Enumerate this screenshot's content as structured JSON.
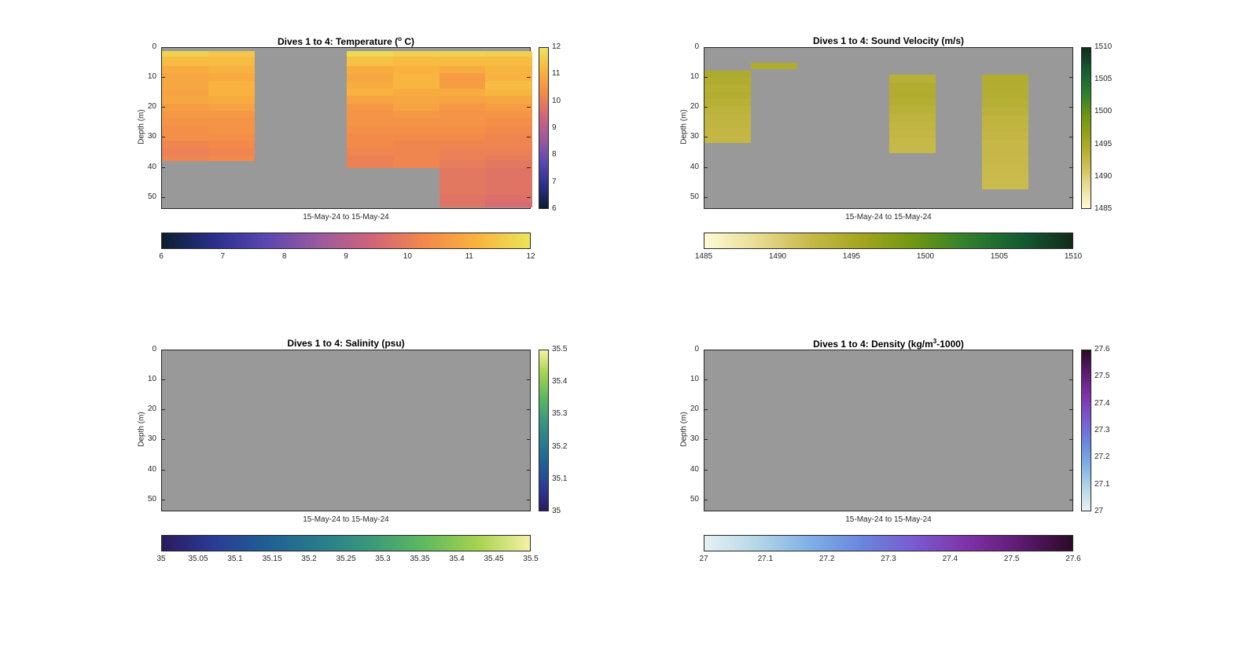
{
  "figure": {
    "background": "#ffffff",
    "nan_color": "#999999"
  },
  "chart_data": [
    {
      "type": "heatmap",
      "title": "Dives 1 to 4: Temperature (",
      "title_sup": "o",
      "title_tail": " C)",
      "ylabel": "Depth (m)",
      "xlabel": "15-May-24 to 15-May-24",
      "ylim": [
        0,
        54
      ],
      "y_reversed": true,
      "yticks": [
        "0",
        "10",
        "20",
        "30",
        "40",
        "50"
      ],
      "clim": [
        6,
        12
      ],
      "colormap": [
        "#0b1f2e",
        "#2a2f8c",
        "#5b47b0",
        "#9b5a9e",
        "#d0647a",
        "#f3894a",
        "#f9b33e",
        "#eae55a"
      ],
      "vbar_ticks": [
        "6",
        "7",
        "8",
        "9",
        "10",
        "11",
        "12"
      ],
      "hbar_ticks": [
        "6",
        "7",
        "8",
        "9",
        "10",
        "11",
        "12"
      ],
      "columns": [
        {
          "values": [
            11.7,
            11.3,
            11.0,
            10.9,
            10.9,
            10.8,
            10.9,
            10.7,
            10.6,
            10.5,
            10.4,
            10.4,
            10.2,
            10.1,
            10.2
          ]
        },
        {
          "values": [
            11.5,
            11.3,
            11.1,
            11.0,
            11.1,
            11.1,
            11.0,
            10.8,
            10.6,
            10.5,
            10.5,
            10.4,
            10.3,
            10.2,
            10.3
          ]
        },
        {
          "values": []
        },
        {
          "values": []
        },
        {
          "values": [
            11.8,
            11.4,
            11.0,
            10.9,
            11.0,
            11.1,
            10.8,
            10.6,
            10.5,
            10.5,
            10.4,
            10.3,
            10.3,
            10.2,
            10.1,
            10.1
          ]
        },
        {
          "values": [
            11.6,
            11.3,
            11.1,
            11.2,
            11.2,
            11.0,
            10.9,
            10.8,
            10.6,
            10.5,
            10.4,
            10.3,
            10.2,
            10.2,
            10.2,
            10.2
          ]
        },
        {
          "values": [
            11.7,
            11.3,
            11.0,
            10.7,
            10.7,
            11.0,
            10.8,
            10.6,
            10.5,
            10.5,
            10.4,
            10.3,
            10.2,
            10.1,
            10.1,
            10.0,
            9.9,
            9.9,
            9.9,
            9.8,
            9.8
          ]
        },
        {
          "values": [
            11.6,
            11.3,
            11.2,
            11.1,
            11.3,
            11.2,
            10.9,
            10.7,
            10.5,
            10.4,
            10.3,
            10.2,
            10.2,
            10.1,
            10.0,
            9.9,
            9.8,
            9.8,
            9.8,
            9.7,
            9.6
          ]
        }
      ],
      "row_depths": [
        [
          1,
          3
        ],
        [
          3,
          6
        ],
        [
          6,
          8.5
        ],
        [
          8.5,
          11
        ],
        [
          11,
          13.5
        ],
        [
          13.5,
          16
        ],
        [
          16,
          18.5
        ],
        [
          18.5,
          21
        ],
        [
          21,
          23.5
        ],
        [
          23.5,
          26
        ],
        [
          26,
          28.5
        ],
        [
          28.5,
          31
        ],
        [
          31,
          33.5
        ],
        [
          33.5,
          36
        ],
        [
          36,
          37.5
        ],
        [
          37.5,
          40
        ],
        [
          40,
          43
        ],
        [
          43,
          46
        ],
        [
          46,
          49
        ],
        [
          49,
          51.5
        ],
        [
          51.5,
          53
        ]
      ]
    },
    {
      "type": "heatmap",
      "title": "Dives 1 to 4: Sound Velocity (m/s)",
      "ylabel": "Depth (m)",
      "xlabel": "15-May-24 to 15-May-24",
      "ylim": [
        0,
        54
      ],
      "y_reversed": true,
      "yticks": [
        "0",
        "10",
        "20",
        "30",
        "40",
        "50"
      ],
      "clim": [
        1485,
        1510
      ],
      "colormap": [
        "#fdfbd6",
        "#e8dc94",
        "#c8b94a",
        "#a2a51e",
        "#6f9612",
        "#2f7f2e",
        "#145c32",
        "#122a1c"
      ],
      "vbar_ticks": [
        "1485",
        "1490",
        "1495",
        "1500",
        "1505",
        "1510"
      ],
      "hbar_ticks": [
        "1485",
        "1490",
        "1495",
        "1500",
        "1505",
        "1510"
      ],
      "segments": [
        {
          "col": 0,
          "y0": 7.5,
          "y1": 31.5,
          "values": [
            1494.6,
            1494.2,
            1493.9,
            1494.1,
            1493.7,
            1493.3,
            1493.0,
            1492.8,
            1492.6,
            1492.5
          ]
        },
        {
          "col": 1,
          "y0": 5,
          "y1": 7,
          "values": [
            1494.4
          ]
        },
        {
          "col": 4,
          "y0": 9,
          "y1": 35,
          "values": [
            1493.6,
            1494.2,
            1494.4,
            1494.0,
            1493.6,
            1493.2,
            1492.9,
            1492.6,
            1492.4,
            1492.2
          ]
        },
        {
          "col": 6,
          "y0": 9,
          "y1": 47,
          "values": [
            1494.3,
            1494.1,
            1494.0,
            1493.7,
            1493.4,
            1493.1,
            1492.8,
            1492.6,
            1492.4,
            1492.3,
            1492.2,
            1492.1,
            1492.0,
            1491.9
          ]
        }
      ]
    },
    {
      "type": "heatmap",
      "title": "Dives 1 to 4: Salinity (psu)",
      "ylabel": "Depth (m)",
      "xlabel": "15-May-24 to 15-May-24",
      "ylim": [
        0,
        54
      ],
      "y_reversed": true,
      "yticks": [
        "0",
        "10",
        "20",
        "30",
        "40",
        "50"
      ],
      "clim": [
        35,
        35.5
      ],
      "colormap": [
        "#2a1a5e",
        "#2b3b96",
        "#1f5f94",
        "#287c8c",
        "#3a9a7a",
        "#5fba5e",
        "#a6d24e",
        "#f6f1a4"
      ],
      "vbar_ticks": [
        "35",
        "35.1",
        "35.2",
        "35.3",
        "35.4",
        "35.5"
      ],
      "hbar_ticks": [
        "35",
        "35.05",
        "35.1",
        "35.15",
        "35.2",
        "35.25",
        "35.3",
        "35.35",
        "35.4",
        "35.45",
        "35.5"
      ],
      "segments": []
    },
    {
      "type": "heatmap",
      "title": "Dives 1 to 4: Density (kg/m",
      "title_sup": "3",
      "title_tail": "-1000)",
      "ylabel": "Depth (m)",
      "xlabel": "15-May-24 to 15-May-24",
      "ylim": [
        0,
        54
      ],
      "y_reversed": true,
      "yticks": [
        "0",
        "10",
        "20",
        "30",
        "40",
        "50"
      ],
      "clim": [
        27,
        27.6
      ],
      "colormap": [
        "#e7f1f3",
        "#b5d6e6",
        "#7fb0e6",
        "#6a85de",
        "#7a5ad0",
        "#7e32a8",
        "#5e1a72",
        "#2c0a26"
      ],
      "vbar_ticks": [
        "27",
        "27.1",
        "27.2",
        "27.3",
        "27.4",
        "27.5",
        "27.6"
      ],
      "hbar_ticks": [
        "27",
        "27.1",
        "27.2",
        "27.3",
        "27.4",
        "27.5",
        "27.6"
      ],
      "segments": []
    }
  ]
}
